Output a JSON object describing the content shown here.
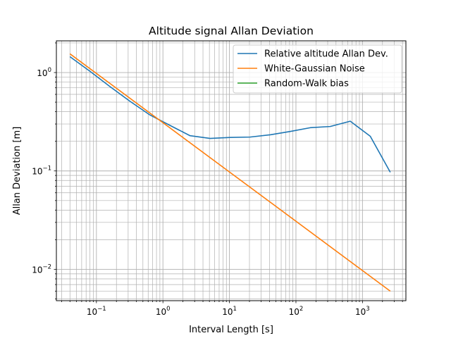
{
  "chart_data": {
    "type": "line",
    "title": "Altitude signal Allan Deviation",
    "xlabel": "Interval Length [s]",
    "ylabel": "Allan Deviation [m]",
    "xscale": "log",
    "yscale": "log",
    "xlim": [
      0.025,
      4500
    ],
    "ylim": [
      0.0048,
      2.1
    ],
    "grid": "both, major and minor",
    "legend_position": "upper right",
    "xticks": [
      {
        "value": 0.1,
        "base": "10",
        "exp": "−1"
      },
      {
        "value": 1,
        "base": "10",
        "exp": "0"
      },
      {
        "value": 10,
        "base": "10",
        "exp": "1"
      },
      {
        "value": 100,
        "base": "10",
        "exp": "2"
      },
      {
        "value": 1000,
        "base": "10",
        "exp": "3"
      }
    ],
    "yticks": [
      {
        "value": 0.01,
        "base": "10",
        "exp": "−2"
      },
      {
        "value": 0.1,
        "base": "10",
        "exp": "−1"
      },
      {
        "value": 1,
        "base": "10",
        "exp": "0"
      }
    ],
    "series": [
      {
        "name": "Relative altitude Allan Dev.",
        "color": "#1f77b4",
        "x": [
          0.04,
          0.08,
          0.16,
          0.32,
          0.64,
          1.28,
          2.56,
          5.12,
          10.24,
          20.48,
          40.96,
          81.92,
          163.84,
          327.68,
          655.36,
          1310.72,
          2621.44
        ],
        "y": [
          1.45,
          1.03,
          0.72,
          0.51,
          0.37,
          0.29,
          0.228,
          0.214,
          0.219,
          0.221,
          0.233,
          0.252,
          0.275,
          0.283,
          0.32,
          0.225,
          0.097
        ]
      },
      {
        "name": "White-Gaussian Noise",
        "color": "#ff7f0e",
        "x": [
          0.04,
          2621.44
        ],
        "y": [
          1.55,
          0.006
        ]
      },
      {
        "name": "Random-Walk bias",
        "color": "#2ca02c",
        "x": [],
        "y": []
      }
    ]
  }
}
